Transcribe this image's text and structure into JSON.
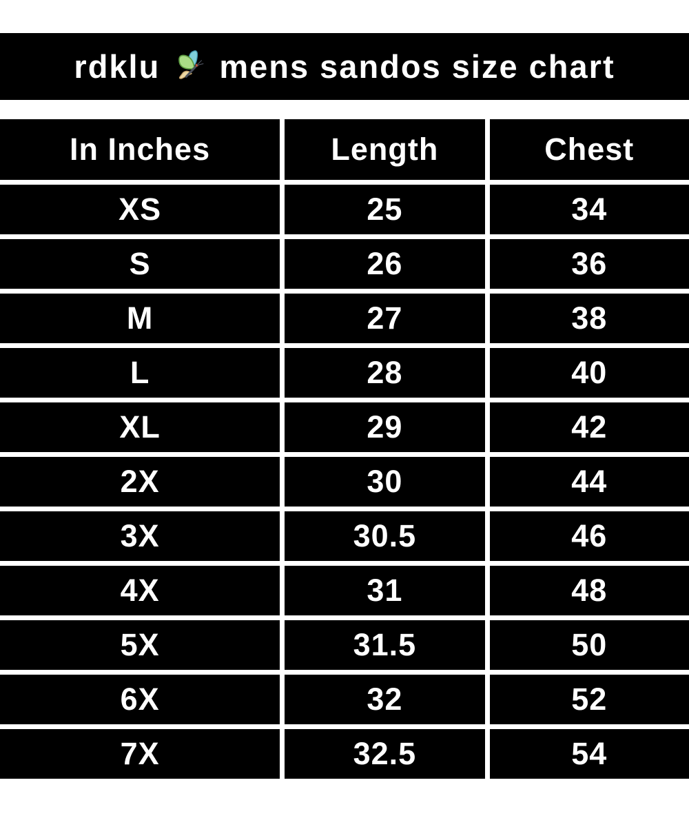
{
  "title": {
    "brand": "rdklu",
    "rest": "mens sandos size chart",
    "icon": "butterfly-icon"
  },
  "chart_data": {
    "type": "table",
    "title": "rdklu mens sandos size chart",
    "columns": [
      "In Inches",
      "Length",
      "Chest"
    ],
    "rows": [
      {
        "size": "XS",
        "length": "25",
        "chest": "34"
      },
      {
        "size": "S",
        "length": "26",
        "chest": "36"
      },
      {
        "size": "M",
        "length": "27",
        "chest": "38"
      },
      {
        "size": "L",
        "length": "28",
        "chest": "40"
      },
      {
        "size": "XL",
        "length": "29",
        "chest": "42"
      },
      {
        "size": "2X",
        "length": "30",
        "chest": "44"
      },
      {
        "size": "3X",
        "length": "30.5",
        "chest": "46"
      },
      {
        "size": "4X",
        "length": "31",
        "chest": "48"
      },
      {
        "size": "5X",
        "length": "31.5",
        "chest": "50"
      },
      {
        "size": "6X",
        "length": "32",
        "chest": "52"
      },
      {
        "size": "7X",
        "length": "32.5",
        "chest": "54"
      }
    ],
    "layout": {
      "grid": "white gutters between black cells",
      "text_align": "center"
    }
  },
  "colors": {
    "background": "#ffffff",
    "bar": "#000000",
    "text": "#ffffff",
    "butterfly_green": "#aadc87",
    "butterfly_green_edge": "#5f9e43",
    "butterfly_teal": "#7fd0da",
    "butterfly_teal_edge": "#3f96ad",
    "butterfly_tan": "#ecd8a3",
    "butterfly_tan_edge": "#c3a068",
    "butterfly_body": "#4a4f5a",
    "butterfly_accent": "#c2553b"
  }
}
